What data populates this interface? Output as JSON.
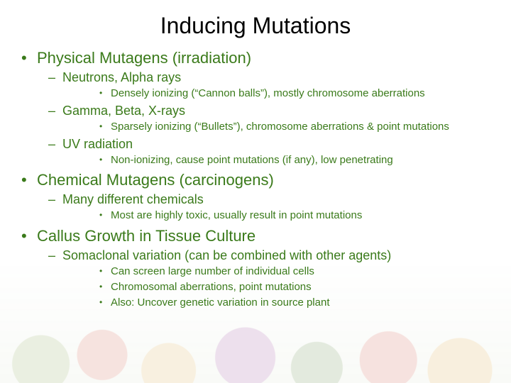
{
  "title": "Inducing Mutations",
  "colors": {
    "text_green": "#3a7a1a",
    "title_black": "#000000",
    "background": "#ffffff"
  },
  "fonts": {
    "title_size": 32,
    "l1_size": 22,
    "l2_size": 18,
    "l3_size": 15,
    "family": "Arial"
  },
  "bullets": {
    "l1": "•",
    "l2": "–",
    "l3": "•"
  },
  "items": [
    {
      "label": "Physical Mutagens (irradiation)",
      "children": [
        {
          "label": "Neutrons, Alpha rays",
          "children": [
            {
              "label": "Densely ionizing (“Cannon balls”), mostly chromosome aberrations"
            }
          ]
        },
        {
          "label": "Gamma, Beta, X-rays",
          "children": [
            {
              "label": "Sparsely ionizing (“Bullets”), chromosome aberrations & point mutations"
            }
          ]
        },
        {
          "label": "UV radiation",
          "children": [
            {
              "label": "Non-ionizing, cause point mutations (if any), low penetrating"
            }
          ]
        }
      ]
    },
    {
      "label": "Chemical Mutagens (carcinogens)",
      "children": [
        {
          "label": "Many different chemicals",
          "children": [
            {
              "label": "Most are highly toxic, usually result in point mutations"
            }
          ]
        }
      ]
    },
    {
      "label": "Callus Growth in Tissue Culture",
      "children": [
        {
          "label": "Somaclonal variation (can be combined with other agents)",
          "children": [
            {
              "label": "Can screen large number of individual cells"
            },
            {
              "label": "Chromosomal aberrations, point mutations"
            },
            {
              "label": "Also: Uncover genetic variation in source plant"
            }
          ]
        }
      ]
    }
  ]
}
